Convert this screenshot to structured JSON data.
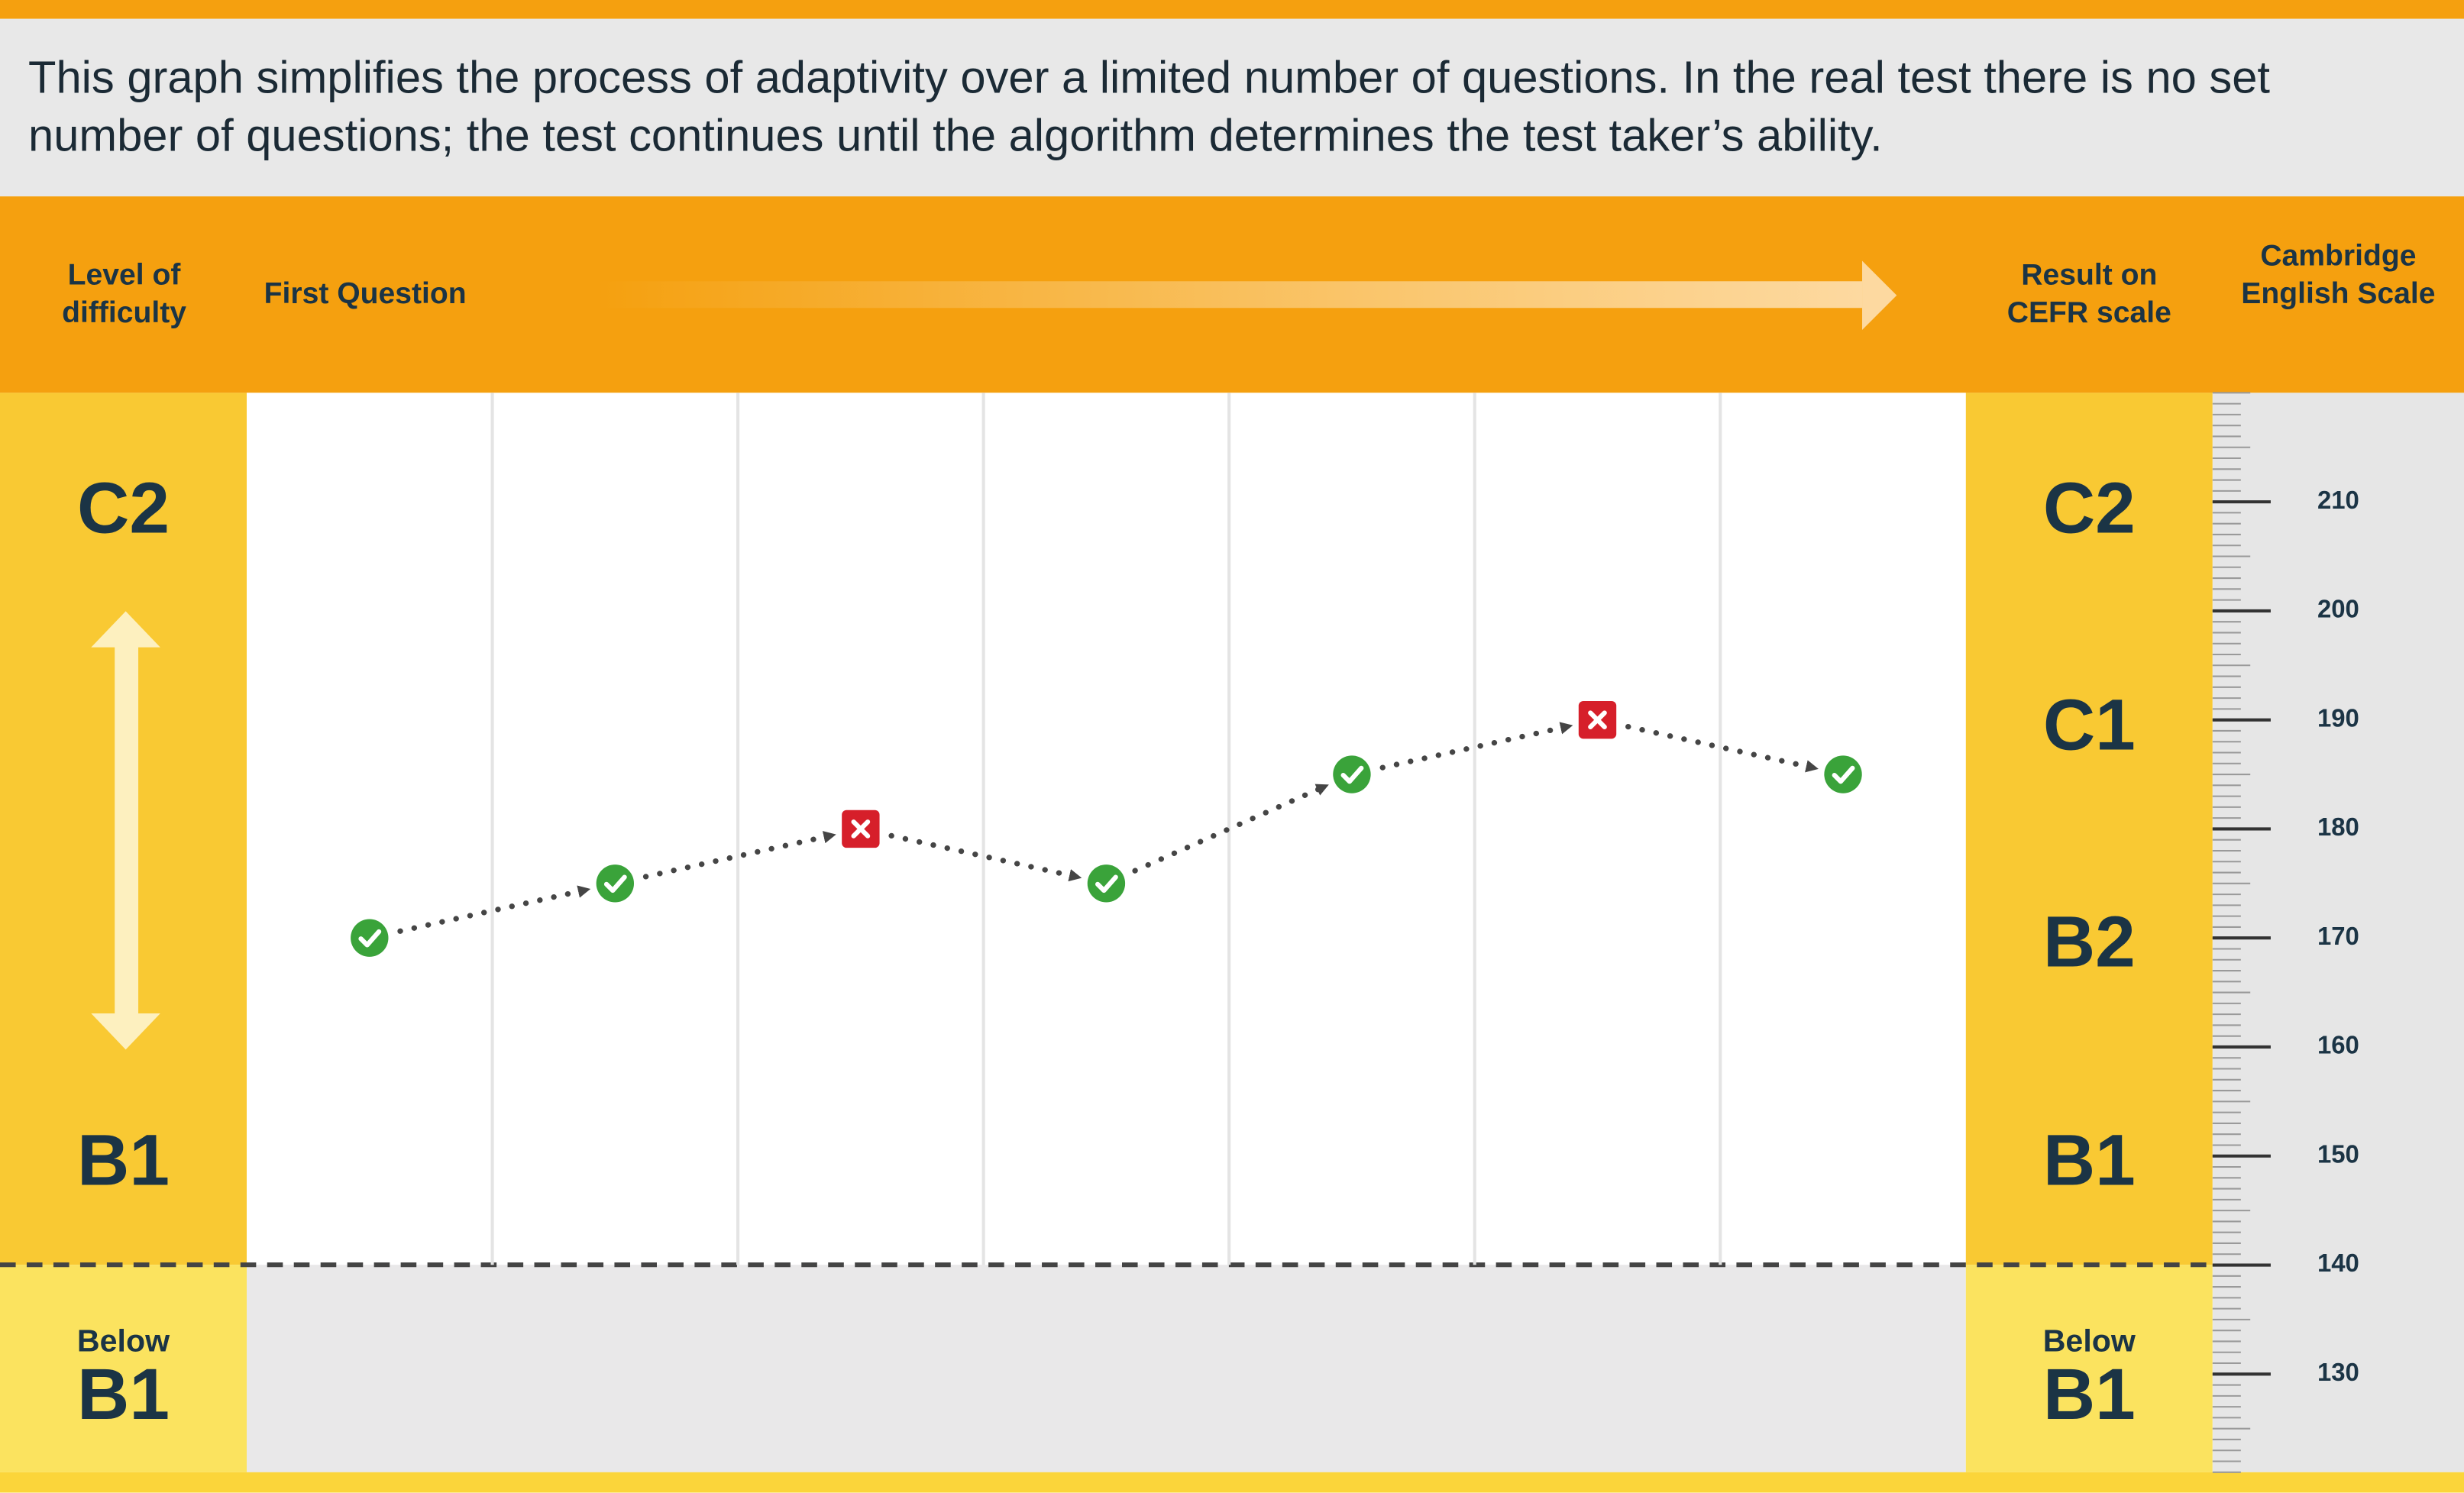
{
  "note": "This graph simplifies the process of adaptivity over a limited number of questions. In the real test there is no set number of questions; the test continues until the algorithm determines the test taker’s ability.",
  "header": {
    "difficulty": "Level of difficulty",
    "first_question": "First Question",
    "cefr_result": "Result on CEFR scale",
    "cambridge_scale": "Cambridge English Scale"
  },
  "left_levels": {
    "top": "C2",
    "bottom": "B1",
    "below_prefix": "Below",
    "below": "B1"
  },
  "right_levels": {
    "bands": [
      "C2",
      "C1",
      "B2",
      "B1"
    ],
    "below_prefix": "Below",
    "below": "B1"
  },
  "chart_data": {
    "type": "line",
    "series": [
      {
        "values": [
          170,
          175,
          180,
          175,
          185,
          190,
          185
        ],
        "correct": [
          true,
          true,
          false,
          true,
          true,
          false,
          true
        ]
      }
    ],
    "correct_color": "#3aa33a",
    "incorrect_color": "#d61f2a",
    "connector_color": "#454545",
    "ylim": [
      121,
      220
    ],
    "yticks": [
      130,
      140,
      150,
      160,
      170,
      180,
      190,
      200,
      210
    ],
    "grid": true
  }
}
